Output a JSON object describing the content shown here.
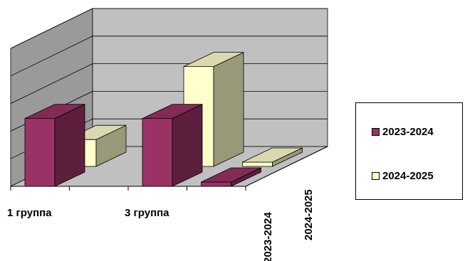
{
  "chart_data": {
    "type": "bar",
    "style": "3d-column-depth",
    "categories": [
      "1 группа",
      "",
      "3 группа",
      ""
    ],
    "series": [
      {
        "name": "2023-2024",
        "values": [
          2.65,
          0,
          2.65,
          0.1
        ],
        "color": "#993366"
      },
      {
        "name": "2024-2025",
        "values": [
          1.05,
          0,
          3.9,
          0.15
        ],
        "color": "#FFFFCC"
      }
    ],
    "depth_labels": [
      "2023-2024",
      "2024-2025"
    ],
    "ylim": [
      0,
      5
    ],
    "grid": true,
    "legend": "right"
  },
  "legend": {
    "items": [
      {
        "label": "2023-2024",
        "color": "#993366"
      },
      {
        "label": "2024-2025",
        "color": "#FFFFCC"
      }
    ]
  }
}
